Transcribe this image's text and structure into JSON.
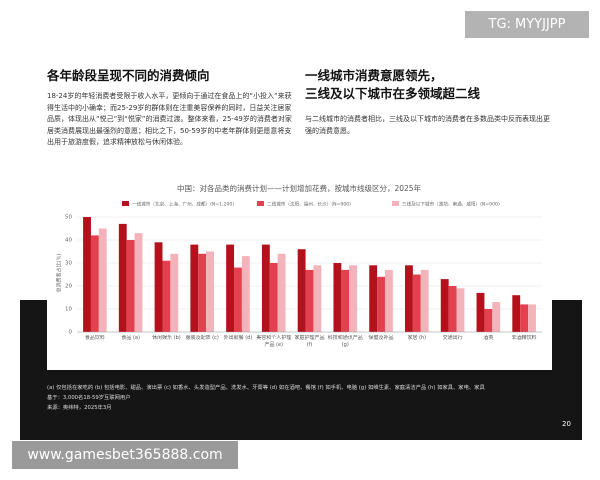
{
  "header": {
    "badge": "TG: MYYJJPP"
  },
  "left": {
    "title": "各年龄段呈现不同的消费倾向",
    "body": "18-24岁的年轻消费者受限于收入水平，更倾向于通过在食品上的“小投入”来获得生活中的小确幸；而25-29岁的群体则在注重美容保养的同时，日益关注居家品质，体现出从“悦己”到“悦家”的消费过渡。整体来看，25-49岁的消费者对家居类消费展现出最强烈的意愿；相比之下，50-59岁的中老年群体则更愿意将支出用于旅游度假，追求精神放松与休闲体验。"
  },
  "right": {
    "title_lines": [
      "一线城市消费意愿领先，",
      "三线及以下城市在多领域超二线"
    ],
    "body": "与二线城市的消费者相比，三线及以下城市的消费者在多数品类中反而表现出更强的消费意愿。"
  },
  "chart_data": {
    "type": "bar",
    "title": "中国：对各品类的消费计划——计划增加花费，按城市线级区分，2025年",
    "ylabel": "总消费者占比(%)",
    "categories": [
      "食品饮料",
      "食品 (a)",
      "休闲娱乐 (b)",
      "服装及配饰 (c)",
      "外出就餐 (d)",
      "美容和个人护理产品 (e)",
      "家庭护理产品 (f)",
      "科技和通讯产品 (g)",
      "保健及补品",
      "家居 (h)",
      "交通出行",
      "酒类",
      "非酒精饮料"
    ],
    "series": [
      {
        "name": "一线城市（北京、上海、广州、成都）(N=1,200)",
        "color": "#b3121c",
        "values": [
          50,
          47,
          39,
          38,
          38,
          38,
          36,
          30,
          29,
          29,
          23,
          17,
          16
        ]
      },
      {
        "name": "二线城市（沈阳、福州、长沙）(N=900)",
        "color": "#e2404e",
        "values": [
          42,
          40,
          31,
          34,
          28,
          30,
          27,
          27,
          24,
          25,
          20,
          10,
          12
        ]
      },
      {
        "name": "三线及以下城市（潍坊、南通、咸阳）(N=900)",
        "color": "#f3b3ba",
        "values": [
          45,
          43,
          34,
          35,
          33,
          34,
          29,
          29,
          27,
          27,
          19,
          13,
          12
        ]
      }
    ],
    "ylim": [
      0,
      50
    ],
    "yticks": [
      0,
      10,
      20,
      30,
      40,
      50
    ],
    "grid": true
  },
  "footnotes": [
    "(a) 仅包括在家吃的 (b) 包括电影、甜品、演出票 (c) 如香水、头发造型产品、洗发水、牙膏等 (d) 如在酒吧、餐馆 (f) 如手机、电脑 (g) 如维生素、家庭清洁产品 (h) 如家具、家电、家具",
    "基于：3,000名18-59岁互联网用户",
    "来源：奥纬特，2025年3月"
  ],
  "page_number": "20",
  "watermark": "www.gamesbet365888.com"
}
